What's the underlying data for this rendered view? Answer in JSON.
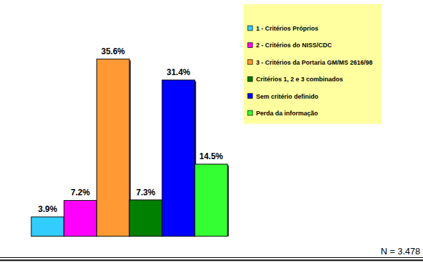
{
  "chart_data": {
    "type": "bar",
    "categories": [
      "1 - Critérios Próprios",
      "2 - Critérios do NISS/CDC",
      "3 - Critérios da Portaria GM/MS 2616/98",
      "Critérios 1, 2 e 3 combinados",
      "Sem critério definido",
      "Perda da informação"
    ],
    "values": [
      3.9,
      7.2,
      35.6,
      7.3,
      31.4,
      14.5
    ],
    "value_labels": [
      "3.9%",
      "7.2%",
      "35.6%",
      "7.3%",
      "31.4%",
      "14.5%"
    ],
    "colors": [
      "#33ccff",
      "#ff00ff",
      "#ff9933",
      "#008000",
      "#0000ff",
      "#33ff33"
    ],
    "data_labels": true,
    "legend": "top-right",
    "tick_labels": false,
    "annotations": [
      "N = 3.478"
    ]
  }
}
